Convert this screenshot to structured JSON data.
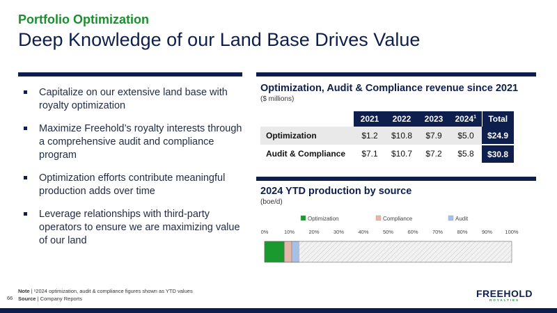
{
  "header": {
    "section": "Portfolio Optimization",
    "title": "Deep Knowledge of our Land Base Drives Value"
  },
  "bullets": [
    "Capitalize on our extensive land base with royalty optimization",
    "Maximize Freehold’s royalty interests through a comprehensive audit and compliance program",
    "Optimization efforts contribute meaningful production adds over time",
    "Leverage relationships with third-party operators to ensure we are maximizing value of our land"
  ],
  "revenue_table": {
    "title": "Optimization, Audit & Compliance revenue since 2021",
    "units": "($ millions)",
    "columns": [
      "2021",
      "2022",
      "2023",
      "2024",
      "Total"
    ],
    "footnote_mark": "1",
    "rows": [
      {
        "label": "Optimization",
        "values": [
          "$1.2",
          "$10.8",
          "$7.9",
          "$5.0"
        ],
        "total": "$24.9"
      },
      {
        "label": "Audit & Compliance",
        "values": [
          "$7.1",
          "$10.7",
          "$7.2",
          "$5.8"
        ],
        "total": "$30.8"
      }
    ]
  },
  "production_chart": {
    "title": "2024 YTD production by source",
    "units": "(boe/d)"
  },
  "chart_data": {
    "type": "bar",
    "orientation": "horizontal",
    "stacked": true,
    "title": "2024 YTD production by source",
    "ylabel": "(boe/d)",
    "xlim": [
      0,
      100
    ],
    "x_ticks": [
      "0%",
      "10%",
      "20%",
      "30%",
      "40%",
      "50%",
      "60%",
      "70%",
      "80%",
      "90%",
      "100%"
    ],
    "legend_position": "top",
    "series": [
      {
        "name": "Optimization",
        "value": 8,
        "color": "#1a9a2e"
      },
      {
        "name": "Compliance",
        "value": 3,
        "color": "#e3b8a8"
      },
      {
        "name": "Audit",
        "value": 3,
        "color": "#a9c0e6"
      },
      {
        "value": 86,
        "color": "#e6e6e6",
        "pattern": "diagonal-hatch"
      }
    ]
  },
  "footer": {
    "note_label": "Note",
    "note_text": "| ¹2024 optimization, audit & compliance figures shown as YTD values",
    "source_label": "Source",
    "source_text": "| Company Reports",
    "page_number": "66",
    "logo_main": "FREEHOLD",
    "logo_sub": "ROYALTIES"
  },
  "colors": {
    "navy": "#0e1f4d",
    "green": "#1a8f2e"
  }
}
